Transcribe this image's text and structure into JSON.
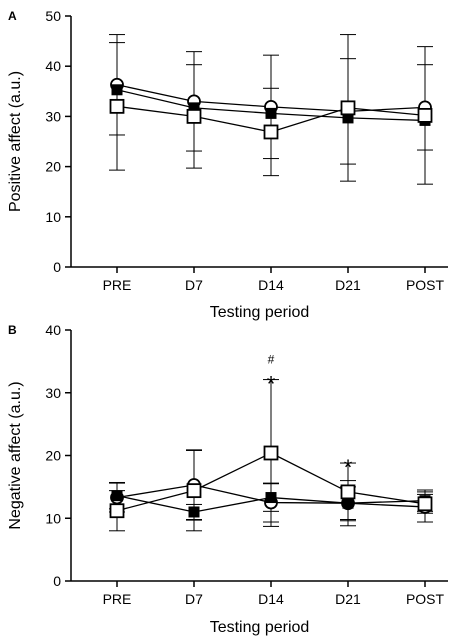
{
  "chart_data": [
    {
      "type": "line",
      "panel_label": "A",
      "xlabel": "Testing period",
      "ylabel": "Positive affect (a.u.)",
      "categories": [
        "PRE",
        "D7",
        "D14",
        "D21",
        "POST"
      ],
      "ylim": [
        0,
        50
      ],
      "yticks": [
        0,
        10,
        20,
        30,
        40,
        50
      ],
      "grid": false,
      "series": [
        {
          "marker": "circle-open",
          "values": [
            36.3,
            33.0,
            31.9,
            31.0,
            31.8
          ],
          "err": [
            10.0,
            9.9,
            10.3,
            10.5,
            8.5
          ]
        },
        {
          "marker": "square-filled",
          "values": [
            35.3,
            31.7,
            30.6,
            29.7,
            29.2
          ],
          "err": [
            null,
            null,
            null,
            null,
            null
          ]
        },
        {
          "marker": "square-open",
          "values": [
            32.0,
            30.0,
            26.9,
            31.7,
            30.2
          ],
          "err": [
            12.7,
            10.3,
            8.7,
            14.6,
            13.7
          ]
        }
      ],
      "annotations": []
    },
    {
      "type": "line",
      "panel_label": "B",
      "xlabel": "Testing period",
      "ylabel": "Negative affect (a.u.)",
      "categories": [
        "PRE",
        "D7",
        "D14",
        "D21",
        "POST"
      ],
      "ylim": [
        0,
        40
      ],
      "yticks": [
        0,
        10,
        20,
        30,
        40
      ],
      "grid": false,
      "series": [
        {
          "marker": "circle-open",
          "values": [
            13.3,
            15.3,
            12.5,
            12.4,
            11.8
          ],
          "err": [
            2.3,
            5.6,
            3.1,
            3.6,
            2.4
          ]
        },
        {
          "marker": "square-filled",
          "values": [
            13.6,
            11.0,
            13.3,
            12.4,
            12.8
          ],
          "err": [
            2.1,
            1.2,
            2.2,
            2.6,
            1.7
          ]
        },
        {
          "marker": "square-open",
          "values": [
            11.2,
            14.4,
            20.4,
            14.2,
            12.3
          ],
          "err": [
            3.2,
            6.4,
            11.7,
            4.6,
            1.5
          ]
        }
      ],
      "annotations": [
        {
          "category": "D14",
          "text": "*",
          "symbol_size": "large"
        },
        {
          "category": "D14",
          "text": "#",
          "symbol_size": "small"
        },
        {
          "category": "D21",
          "text": "*",
          "symbol_size": "large"
        }
      ]
    }
  ]
}
